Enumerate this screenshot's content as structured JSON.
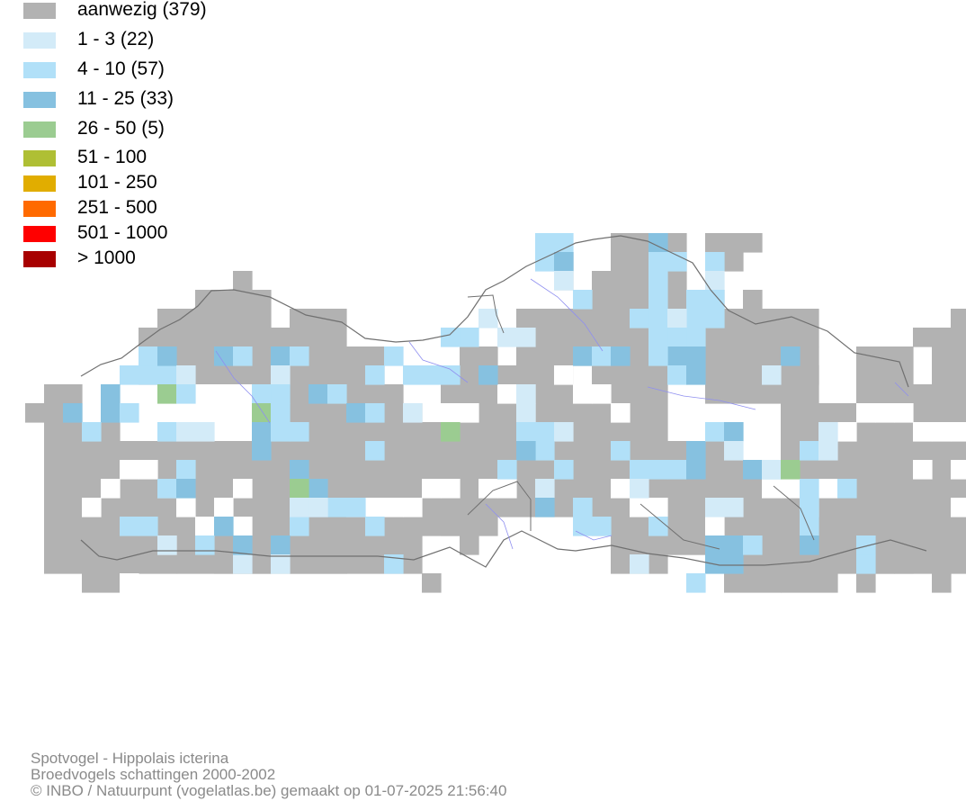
{
  "legend": {
    "items": [
      {
        "label": "aanwezig (379)",
        "color": "#b2b2b2"
      },
      {
        "label": "1 - 3 (22)",
        "color": "#d3ebf8"
      },
      {
        "label": "4 - 10 (57)",
        "color": "#b1e0f8"
      },
      {
        "label": "11 - 25 (33)",
        "color": "#86c1e0"
      },
      {
        "label": "26 - 50 (5)",
        "color": "#9bcc91"
      },
      {
        "label": "51 - 100",
        "color": "#afbf34"
      },
      {
        "label": "101 - 250",
        "color": "#e1ad00"
      },
      {
        "label": "251 - 500",
        "color": "#ff6a00"
      },
      {
        "label": "501 - 1000",
        "color": "#ff0000"
      },
      {
        "label": "> 1000",
        "color": "#a80000"
      }
    ]
  },
  "credits": {
    "species": "Spotvogel - Hippolais icterina",
    "dataset": "Broedvogels schattingen 2000-2002",
    "copyright": "© INBO / Natuurpunt (vogelatlas.be) gemaakt op 01-07-2025 21:56:40"
  },
  "map": {
    "border_color": "#707070",
    "river_color": "#8f8ff0"
  }
}
